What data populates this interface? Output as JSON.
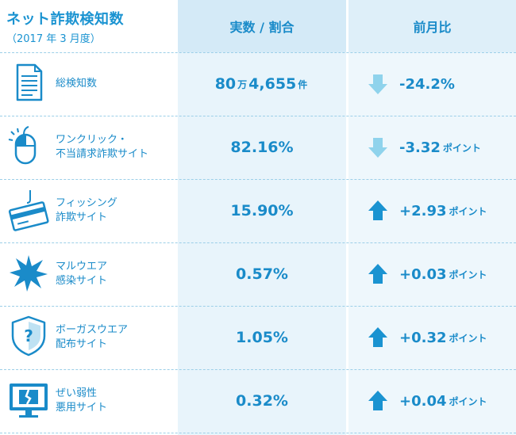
{
  "colors": {
    "accent": "#1a8bc9",
    "arrow_down": "#8fd3ec",
    "arrow_up": "#1a93d1",
    "header_mid": "#d4eaf7"
  },
  "header": {
    "title": "ネット詐欺検知数",
    "subtitle": "（2017 年 3 月度）",
    "col_value": "実数 / 割合",
    "col_change": "前月比"
  },
  "rows": [
    {
      "icon": "document-icon",
      "label1": "総検知数",
      "label2": "",
      "value_parts": [
        "80",
        "万",
        "4,655",
        "件"
      ],
      "direction": "down",
      "change": "-24.2%",
      "unit": ""
    },
    {
      "icon": "mouse-click-icon",
      "label1": "ワンクリック・",
      "label2": "不当請求詐欺サイト",
      "value": "82.16%",
      "direction": "down",
      "change": "-3.32",
      "unit": "ポイント"
    },
    {
      "icon": "credit-card-hook-icon",
      "label1": "フィッシング",
      "label2": "詐欺サイト",
      "value": "15.90%",
      "direction": "up",
      "change": "+2.93",
      "unit": "ポイント"
    },
    {
      "icon": "malware-burst-icon",
      "label1": "マルウエア",
      "label2": "感染サイト",
      "value": "0.57%",
      "direction": "up",
      "change": "+0.03",
      "unit": "ポイント"
    },
    {
      "icon": "shield-question-icon",
      "label1": "ボーガスウエア",
      "label2": "配布サイト",
      "value": "1.05%",
      "direction": "up",
      "change": "+0.32",
      "unit": "ポイント"
    },
    {
      "icon": "broken-monitor-icon",
      "label1": "ぜい弱性",
      "label2": "悪用サイト",
      "value": "0.32%",
      "direction": "up",
      "change": "+0.04",
      "unit": "ポイント"
    }
  ],
  "chart_data": {
    "type": "table",
    "title": "ネット詐欺検知数",
    "subtitle": "（2017 年 3 月度）",
    "columns": [
      "",
      "実数 / 割合",
      "前月比"
    ],
    "rows": [
      [
        "総検知数",
        "80万4,655件",
        "-24.2%"
      ],
      [
        "ワンクリック・不当請求詐欺サイト",
        "82.16%",
        "-3.32ポイント"
      ],
      [
        "フィッシング詐欺サイト",
        "15.90%",
        "+2.93ポイント"
      ],
      [
        "マルウエア感染サイト",
        "0.57%",
        "+0.03ポイント"
      ],
      [
        "ボーガスウエア配布サイト",
        "1.05%",
        "+0.32ポイント"
      ],
      [
        "ぜい弱性悪用サイト",
        "0.32%",
        "+0.04ポイント"
      ]
    ]
  }
}
